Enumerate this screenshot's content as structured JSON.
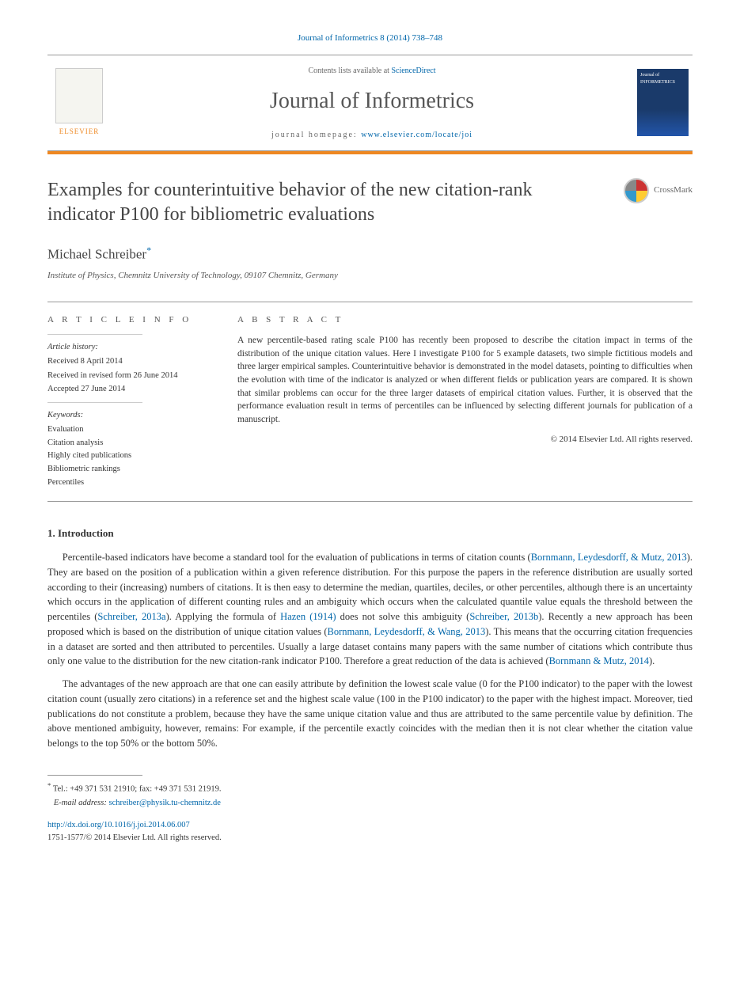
{
  "header": {
    "citation": "Journal of Informetrics 8 (2014) 738–748",
    "contents_prefix": "Contents lists available at ",
    "contents_link": "ScienceDirect",
    "journal_title": "Journal of Informetrics",
    "homepage_prefix": "journal homepage: ",
    "homepage_url": "www.elsevier.com/locate/joi",
    "elsevier_label": "ELSEVIER",
    "cover_text": "Journal of INFORMETRICS"
  },
  "article": {
    "title": "Examples for counterintuitive behavior of the new citation-rank indicator P100 for bibliometric evaluations",
    "crossmark_label": "CrossMark",
    "author": "Michael Schreiber",
    "author_mark": "*",
    "affiliation": "Institute of Physics, Chemnitz University of Technology, 09107 Chemnitz, Germany"
  },
  "info": {
    "label": "A R T I C L E   I N F O",
    "history_head": "Article history:",
    "history": [
      "Received 8 April 2014",
      "Received in revised form 26 June 2014",
      "Accepted 27 June 2014"
    ],
    "keywords_head": "Keywords:",
    "keywords": [
      "Evaluation",
      "Citation analysis",
      "Highly cited publications",
      "Bibliometric rankings",
      "Percentiles"
    ]
  },
  "abstract": {
    "label": "A B S T R A C T",
    "text": "A new percentile-based rating scale P100 has recently been proposed to describe the citation impact in terms of the distribution of the unique citation values. Here I investigate P100 for 5 example datasets, two simple fictitious models and three larger empirical samples. Counterintuitive behavior is demonstrated in the model datasets, pointing to difficulties when the evolution with time of the indicator is analyzed or when different fields or publication years are compared. It is shown that similar problems can occur for the three larger datasets of empirical citation values. Further, it is observed that the performance evaluation result in terms of percentiles can be influenced by selecting different journals for publication of a manuscript.",
    "copyright": "© 2014 Elsevier Ltd. All rights reserved."
  },
  "body": {
    "section_title": "1.  Introduction",
    "para1_a": "Percentile-based indicators have become a standard tool for the evaluation of publications in terms of citation counts (",
    "para1_link1": "Bornmann, Leydesdorff, & Mutz, 2013",
    "para1_b": "). They are based on the position of a publication within a given reference distribution. For this purpose the papers in the reference distribution are usually sorted according to their (increasing) numbers of citations. It is then easy to determine the median, quartiles, deciles, or other percentiles, although there is an uncertainty which occurs in the application of different counting rules and an ambiguity which occurs when the calculated quantile value equals the threshold between the percentiles (",
    "para1_link2": "Schreiber, 2013a",
    "para1_c": "). Applying the formula of ",
    "para1_link3": "Hazen (1914)",
    "para1_d": " does not solve this ambiguity (",
    "para1_link4": "Schreiber, 2013b",
    "para1_e": "). Recently a new approach has been proposed which is based on the distribution of unique citation values (",
    "para1_link5": "Bornmann, Leydesdorff, & Wang, 2013",
    "para1_f": "). This means that the occurring citation frequencies in a dataset are sorted and then attributed to percentiles. Usually a large dataset contains many papers with the same number of citations which contribute thus only one value to the distribution for the new citation-rank indicator P100. Therefore a great reduction of the data is achieved (",
    "para1_link6": "Bornmann & Mutz, 2014",
    "para1_g": ").",
    "para2": "The advantages of the new approach are that one can easily attribute by definition the lowest scale value (0 for the P100 indicator) to the paper with the lowest citation count (usually zero citations) in a reference set and the highest scale value (100 in the P100 indicator) to the paper with the highest impact. Moreover, tied publications do not constitute a problem, because they have the same unique citation value and thus are attributed to the same percentile value by definition. The above mentioned ambiguity, however, remains: For example, if the percentile exactly coincides with the median then it is not clear whether the citation value belongs to the top 50% or the bottom 50%."
  },
  "footnotes": {
    "corr_mark": "*",
    "corr_text": "Tel.: +49 371 531 21910; fax: +49 371 531 21919.",
    "email_label": "E-mail address: ",
    "email": "schreiber@physik.tu-chemnitz.de",
    "doi": "http://dx.doi.org/10.1016/j.joi.2014.06.007",
    "issn_line": "1751-1577/© 2014 Elsevier Ltd. All rights reserved."
  },
  "colors": {
    "link": "#0066aa",
    "accent": "#ee8822",
    "text": "#333333",
    "rule": "#999999"
  }
}
